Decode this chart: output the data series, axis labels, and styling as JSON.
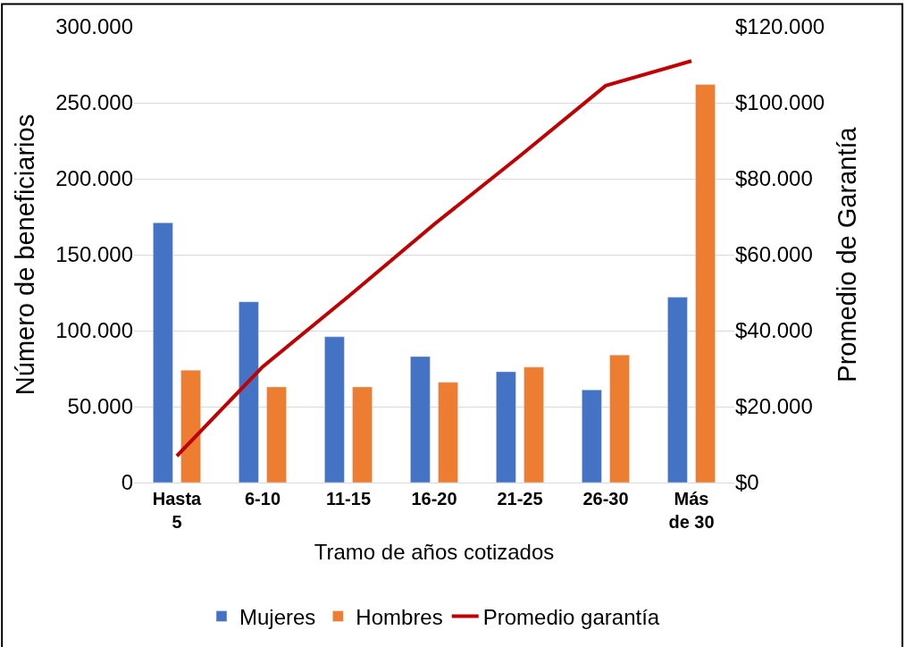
{
  "chart_data": {
    "type": "bar",
    "xlabel": "Tramo de años cotizados",
    "ylabel": "Número de beneficiarios",
    "y2label": "Promedio de Garantía",
    "categories": [
      "Hasta 5",
      "6-10",
      "11-15",
      "16-20",
      "21-25",
      "26-30",
      "Más de 30"
    ],
    "series": [
      {
        "name": "Mujeres",
        "color": "#4472c4",
        "values": [
          171000,
          119000,
          96000,
          83000,
          73000,
          61000,
          122000
        ]
      },
      {
        "name": "Hombres",
        "color": "#ed7d31",
        "values": [
          74000,
          63000,
          63000,
          66000,
          76000,
          84000,
          262000
        ]
      },
      {
        "name": "Promedio garantía",
        "color": "#c00000",
        "type": "line",
        "axis": "y2",
        "marker": "none",
        "values": [
          7000,
          30500,
          49000,
          68000,
          86000,
          104500,
          111000
        ]
      }
    ],
    "ylim": [
      0,
      300000
    ],
    "yticks": [
      {
        "value": 0,
        "label": "0"
      },
      {
        "value": 50000,
        "label": "50.000"
      },
      {
        "value": 100000,
        "label": "100.000"
      },
      {
        "value": 150000,
        "label": "150.000"
      },
      {
        "value": 200000,
        "label": "200.000"
      },
      {
        "value": 250000,
        "label": "250.000"
      },
      {
        "value": 300000,
        "label": "300.000"
      }
    ],
    "y2lim": [
      0,
      120000
    ],
    "y2ticks": [
      {
        "value": 0,
        "label": "$0"
      },
      {
        "value": 20000,
        "label": "$20.000"
      },
      {
        "value": 40000,
        "label": "$40.000"
      },
      {
        "value": 60000,
        "label": "$60.000"
      },
      {
        "value": 80000,
        "label": "$80.000"
      },
      {
        "value": 100000,
        "label": "$100.000"
      },
      {
        "value": 120000,
        "label": "$120.000"
      }
    ],
    "grid": "y",
    "legend": "bottom"
  }
}
